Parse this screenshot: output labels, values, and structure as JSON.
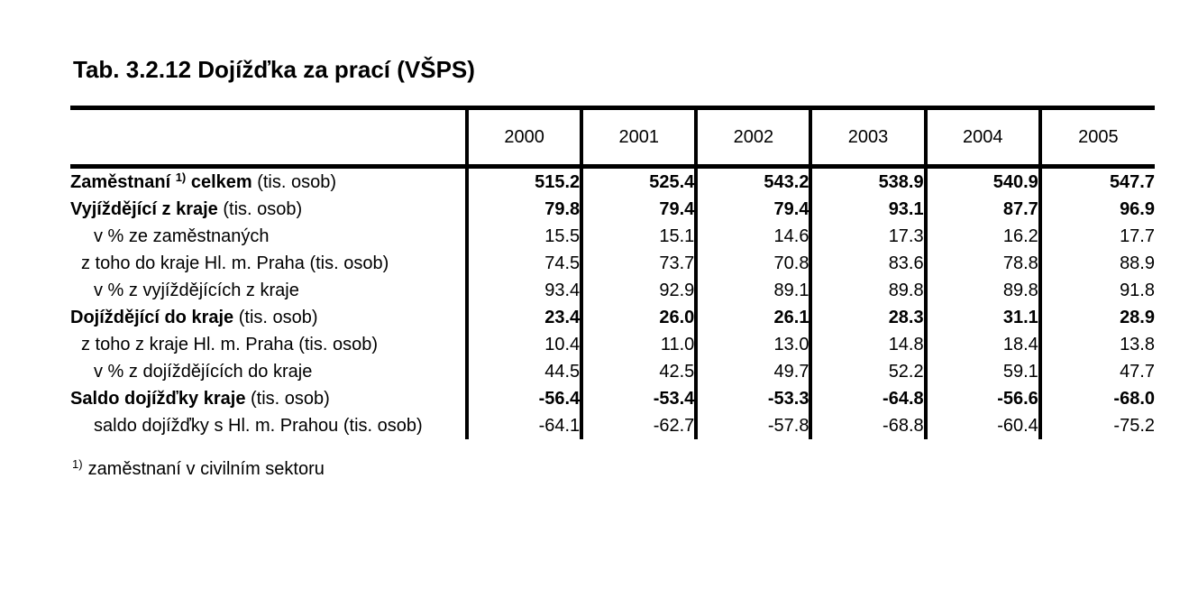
{
  "title": "Tab. 3.2.12 Dojížďka za prací (VŠPS)",
  "table": {
    "col_headers": [
      "2000",
      "2001",
      "2002",
      "2003",
      "2004",
      "2005"
    ],
    "rows": [
      {
        "label_parts": [
          {
            "text": "Zaměstnaní ",
            "bold": true
          },
          {
            "text": "1)",
            "bold": true,
            "sup": true
          },
          {
            "text": " celkem",
            "bold": true
          },
          {
            "text": " (tis. osob)",
            "bold": false
          }
        ],
        "indent": 0,
        "values_bold": true,
        "values": [
          "515.2",
          "525.4",
          "543.2",
          "538.9",
          "540.9",
          "547.7"
        ]
      },
      {
        "label_parts": [
          {
            "text": "Vyjíždějící z kraje",
            "bold": true
          },
          {
            "text": " (tis. osob)",
            "bold": false
          }
        ],
        "indent": 0,
        "values_bold": true,
        "values": [
          "79.8",
          "79.4",
          "79.4",
          "93.1",
          "87.7",
          "96.9"
        ]
      },
      {
        "label_parts": [
          {
            "text": "v % ze zaměstnaných",
            "bold": false
          }
        ],
        "indent": 2,
        "values_bold": false,
        "values": [
          "15.5",
          "15.1",
          "14.6",
          "17.3",
          "16.2",
          "17.7"
        ]
      },
      {
        "label_parts": [
          {
            "text": "z toho do kraje Hl. m. Praha (tis. osob)",
            "bold": false
          }
        ],
        "indent": 1,
        "values_bold": false,
        "values": [
          "74.5",
          "73.7",
          "70.8",
          "83.6",
          "78.8",
          "88.9"
        ]
      },
      {
        "label_parts": [
          {
            "text": "v % z vyjíždějících z kraje",
            "bold": false
          }
        ],
        "indent": 2,
        "values_bold": false,
        "values": [
          "93.4",
          "92.9",
          "89.1",
          "89.8",
          "89.8",
          "91.8"
        ]
      },
      {
        "label_parts": [
          {
            "text": "Dojíždějící do kraje",
            "bold": true
          },
          {
            "text": " (tis. osob)",
            "bold": false
          }
        ],
        "indent": 0,
        "values_bold": true,
        "values": [
          "23.4",
          "26.0",
          "26.1",
          "28.3",
          "31.1",
          "28.9"
        ]
      },
      {
        "label_parts": [
          {
            "text": "z toho z kraje Hl. m. Praha (tis. osob)",
            "bold": false
          }
        ],
        "indent": 1,
        "values_bold": false,
        "values": [
          "10.4",
          "11.0",
          "13.0",
          "14.8",
          "18.4",
          "13.8"
        ]
      },
      {
        "label_parts": [
          {
            "text": "v % z dojíždějících do kraje",
            "bold": false
          }
        ],
        "indent": 2,
        "values_bold": false,
        "values": [
          "44.5",
          "42.5",
          "49.7",
          "52.2",
          "59.1",
          "47.7"
        ]
      },
      {
        "label_parts": [
          {
            "text": "Saldo dojížďky kraje",
            "bold": true
          },
          {
            "text": " (tis. osob)",
            "bold": false
          }
        ],
        "indent": 0,
        "values_bold": true,
        "values": [
          "-56.4",
          "-53.4",
          "-53.3",
          "-64.8",
          "-56.6",
          "-68.0"
        ]
      },
      {
        "label_parts": [
          {
            "text": "saldo dojížďky s Hl. m. Prahou (tis. osob)",
            "bold": false
          }
        ],
        "indent": 2,
        "values_bold": false,
        "values": [
          "-64.1",
          "-62.7",
          "-57.8",
          "-68.8",
          "-60.4",
          "-75.2"
        ]
      }
    ]
  },
  "footnote": {
    "sup": "1)",
    "text": "zaměstnaní v civilním sektoru"
  },
  "colors": {
    "text": "#000000",
    "background": "#ffffff",
    "border": "#000000"
  }
}
